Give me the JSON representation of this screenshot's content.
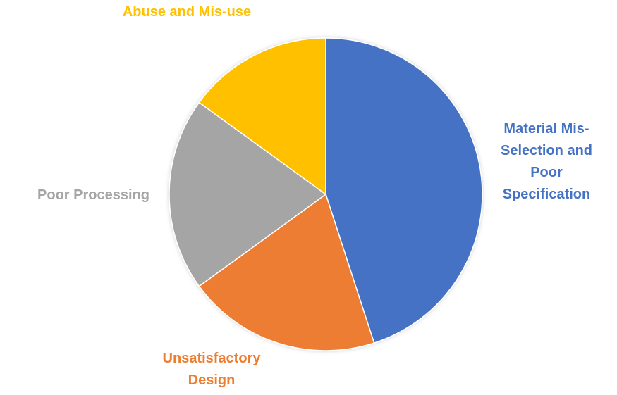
{
  "chart_data": {
    "type": "pie",
    "title": "",
    "categories": [
      "Material Mis-Selection and Poor Specification",
      "Unsatisfactory Design",
      "Poor Processing",
      "Abuse and Mis-use"
    ],
    "values": [
      45,
      20,
      20,
      15
    ],
    "colors": [
      "#4472C4",
      "#ED7D31",
      "#A5A5A5",
      "#FFC000"
    ],
    "start_angle_deg": 0,
    "direction": "clockwise",
    "legend": "none",
    "labels_outside": true
  }
}
